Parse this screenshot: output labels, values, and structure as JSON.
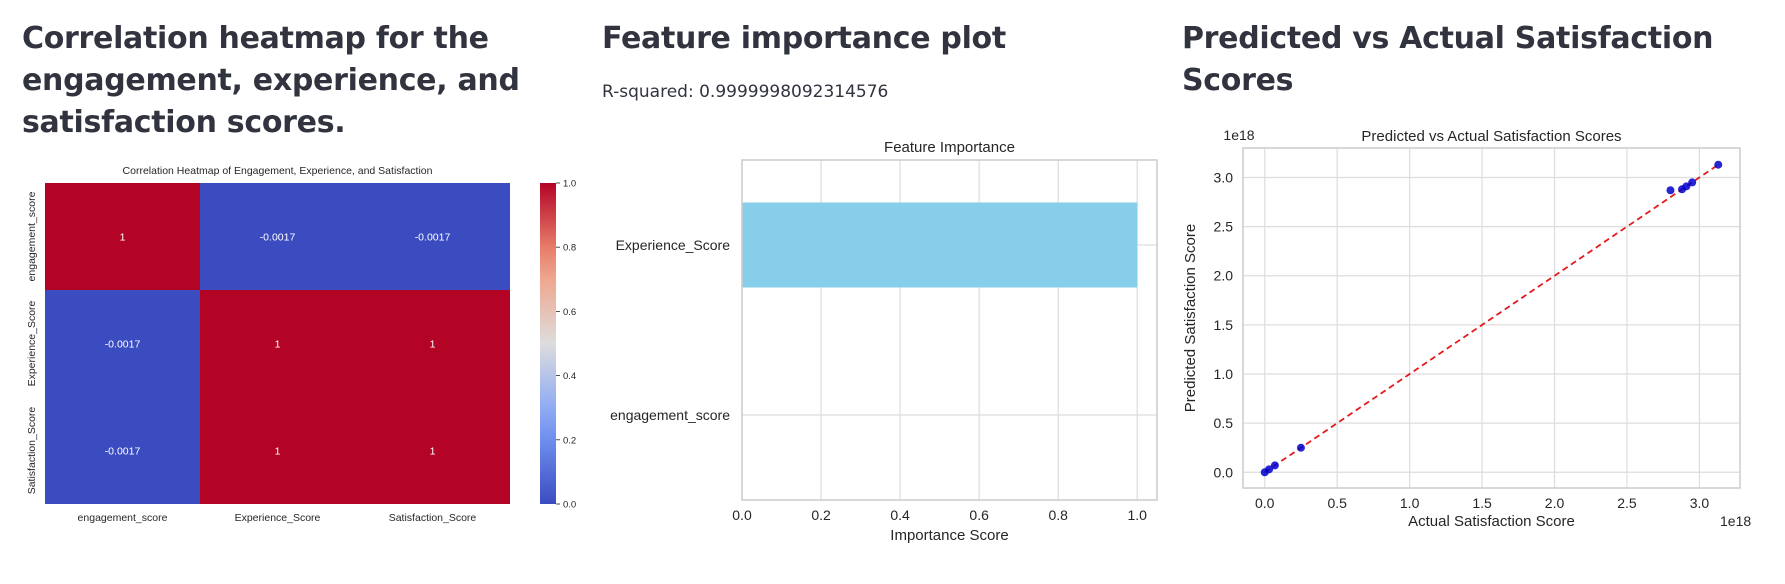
{
  "sections": {
    "heatmap_heading": "Correlation heatmap for the engagement, experience, and satisfaction scores.",
    "importance_heading": "Feature importance plot",
    "importance_metric": "R-squared: 0.9999998092314576",
    "scatter_heading": "Predicted vs Actual Satisfaction Scores"
  },
  "colors": {
    "heat_low": "#3b4cc0",
    "heat_high": "#b40426",
    "bar": "#87ceeb",
    "scatter_point": "#0000cc",
    "fit_line": "#e41a1c",
    "grid": "#dddddd"
  },
  "chart_data": [
    {
      "type": "heatmap",
      "title": "Correlation Heatmap of Engagement, Experience, and Satisfaction",
      "x_labels": [
        "engagement_score",
        "Experience_Score",
        "Satisfaction_Score"
      ],
      "y_labels": [
        "engagement_score",
        "Experience_Score",
        "Satisfaction_Score"
      ],
      "values": [
        [
          1,
          -0.0017,
          -0.0017
        ],
        [
          -0.0017,
          1,
          1
        ],
        [
          -0.0017,
          1,
          1
        ]
      ],
      "annotations": [
        [
          "1",
          "-0.0017",
          "-0.0017"
        ],
        [
          "-0.0017",
          "1",
          "1"
        ],
        [
          "-0.0017",
          "1",
          "1"
        ]
      ],
      "colormap": "coolwarm",
      "colorbar_range": [
        0,
        1
      ],
      "colorbar_ticks": [
        "0.0",
        "0.2",
        "0.4",
        "0.6",
        "0.8",
        "1.0"
      ]
    },
    {
      "type": "bar",
      "orientation": "horizontal",
      "title": "Feature Importance",
      "categories": [
        "Experience_Score",
        "engagement_score"
      ],
      "values": [
        1.0,
        0.0
      ],
      "xlabel": "Importance Score",
      "ylabel": "",
      "xlim": [
        0,
        1.05
      ],
      "x_ticks": [
        "0.0",
        "0.2",
        "0.4",
        "0.6",
        "0.8",
        "1.0"
      ],
      "grid": true
    },
    {
      "type": "scatter",
      "title": "Predicted vs Actual Satisfaction Scores",
      "xlabel": "Actual Satisfaction Score",
      "ylabel": "Predicted Satisfaction Score",
      "x_offset_label": "1e18",
      "y_offset_label": "1e18",
      "x": [
        0.0,
        0.03,
        0.07,
        0.25,
        2.8,
        2.88,
        2.91,
        2.95,
        3.13
      ],
      "y": [
        0.0,
        0.03,
        0.07,
        0.25,
        2.87,
        2.88,
        2.91,
        2.95,
        3.13
      ],
      "xlim": [
        -0.15,
        3.28
      ],
      "ylim": [
        -0.16,
        3.3
      ],
      "x_ticks": [
        "0.0",
        "0.5",
        "1.0",
        "1.5",
        "2.0",
        "2.5",
        "3.0"
      ],
      "y_ticks": [
        "0.0",
        "0.5",
        "1.0",
        "1.5",
        "2.0",
        "2.5",
        "3.0"
      ],
      "reference_line": {
        "x": [
          0.0,
          3.13
        ],
        "y": [
          0.0,
          3.13
        ]
      },
      "grid": true
    }
  ]
}
